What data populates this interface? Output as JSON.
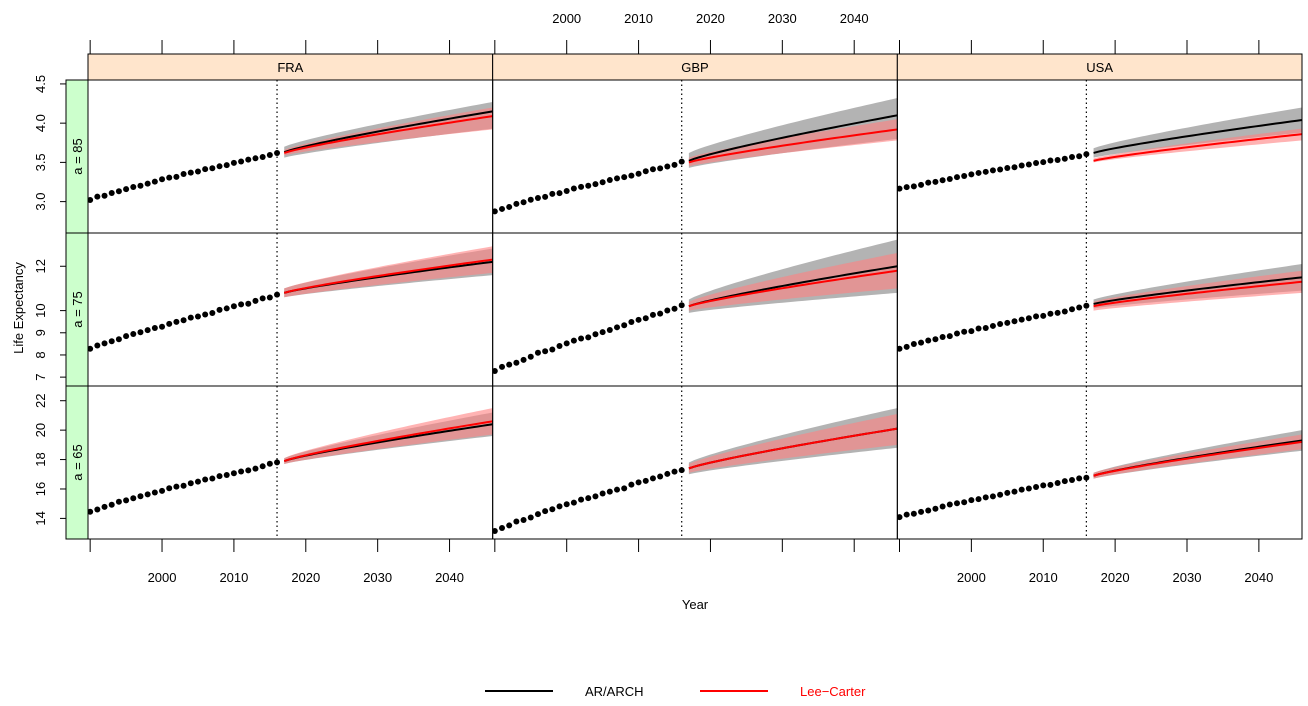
{
  "chart_data": {
    "type": "line",
    "xlabel": "Year",
    "ylabel": "Life Expectancy",
    "observed_years": [
      1990,
      2016
    ],
    "forecast_years": [
      2017,
      2046
    ],
    "forecast_origin": 2016,
    "x_ticks": [
      2000,
      2010,
      2020,
      2030,
      2040
    ],
    "columns": [
      "FRA",
      "GBP",
      "USA"
    ],
    "rows": [
      {
        "label": "a = 85",
        "ylim": [
          2.6,
          4.55
        ],
        "y_ticks": [
          "3.0",
          "3.5",
          "4.0",
          "4.5"
        ]
      },
      {
        "label": "a = 75",
        "ylim": [
          6.6,
          13.5
        ],
        "y_ticks": [
          "7",
          "8",
          "9",
          "10",
          "12"
        ],
        "y_tick_values": [
          7,
          8,
          9,
          10,
          12
        ]
      },
      {
        "label": "a = 65",
        "ylim": [
          12.6,
          23.0
        ],
        "y_ticks": [
          "14",
          "16",
          "18",
          "20",
          "22"
        ],
        "y_tick_values": [
          14,
          16,
          18,
          20,
          22
        ]
      }
    ],
    "panels": [
      {
        "column": "FRA",
        "row": "a = 85",
        "observed_start": 3.03,
        "observed_end": 3.62,
        "ar_arch": {
          "start": 3.63,
          "end": 4.15,
          "lower_start": 3.56,
          "lower_end": 3.93,
          "upper_start": 3.7,
          "upper_end": 4.27
        },
        "lee_carter": {
          "start": 3.62,
          "end": 4.09,
          "lower_start": 3.59,
          "lower_end": 3.92,
          "upper_start": 3.66,
          "upper_end": 4.2
        }
      },
      {
        "column": "GBP",
        "row": "a = 85",
        "observed_start": 2.88,
        "observed_end": 3.5,
        "ar_arch": {
          "start": 3.52,
          "end": 4.1,
          "lower_start": 3.43,
          "lower_end": 3.8,
          "upper_start": 3.62,
          "upper_end": 4.32
        },
        "lee_carter": {
          "start": 3.5,
          "end": 3.92,
          "lower_start": 3.45,
          "lower_end": 3.78,
          "upper_start": 3.56,
          "upper_end": 4.05
        }
      },
      {
        "column": "USA",
        "row": "a = 85",
        "observed_start": 3.16,
        "observed_end": 3.6,
        "ar_arch": {
          "start": 3.62,
          "end": 4.04,
          "lower_start": 3.56,
          "lower_end": 3.88,
          "upper_start": 3.68,
          "upper_end": 4.2
        },
        "lee_carter": {
          "start": 3.52,
          "end": 3.86,
          "lower_start": 3.5,
          "lower_end": 3.78,
          "upper_start": 3.55,
          "upper_end": 3.93
        }
      },
      {
        "column": "FRA",
        "row": "a = 75",
        "observed_start": 8.3,
        "observed_end": 10.7,
        "ar_arch": {
          "start": 10.8,
          "end": 12.2,
          "lower_start": 10.6,
          "lower_end": 11.6,
          "upper_start": 11.0,
          "upper_end": 12.8
        },
        "lee_carter": {
          "start": 10.8,
          "end": 12.3,
          "lower_start": 10.6,
          "lower_end": 11.7,
          "upper_start": 11.0,
          "upper_end": 12.9
        }
      },
      {
        "column": "GBP",
        "row": "a = 75",
        "observed_start": 7.3,
        "observed_end": 10.2,
        "ar_arch": {
          "start": 10.2,
          "end": 12.0,
          "lower_start": 9.9,
          "lower_end": 10.8,
          "upper_start": 10.5,
          "upper_end": 13.2
        },
        "lee_carter": {
          "start": 10.2,
          "end": 11.8,
          "lower_start": 10.0,
          "lower_end": 11.0,
          "upper_start": 10.4,
          "upper_end": 12.6
        }
      },
      {
        "column": "USA",
        "row": "a = 75",
        "observed_start": 8.3,
        "observed_end": 10.2,
        "ar_arch": {
          "start": 10.3,
          "end": 11.5,
          "lower_start": 10.1,
          "lower_end": 10.9,
          "upper_start": 10.5,
          "upper_end": 12.1
        },
        "lee_carter": {
          "start": 10.2,
          "end": 11.3,
          "lower_start": 10.0,
          "lower_end": 10.8,
          "upper_start": 10.4,
          "upper_end": 11.8
        }
      },
      {
        "column": "FRA",
        "row": "a = 65",
        "observed_start": 14.5,
        "observed_end": 17.8,
        "ar_arch": {
          "start": 17.9,
          "end": 20.4,
          "lower_start": 17.7,
          "lower_end": 19.6,
          "upper_start": 18.1,
          "upper_end": 21.2
        },
        "lee_carter": {
          "start": 17.9,
          "end": 20.6,
          "lower_start": 17.7,
          "lower_end": 19.7,
          "upper_start": 18.1,
          "upper_end": 21.5
        }
      },
      {
        "column": "GBP",
        "row": "a = 65",
        "observed_start": 13.2,
        "observed_end": 17.3,
        "ar_arch": {
          "start": 17.4,
          "end": 20.1,
          "lower_start": 17.0,
          "lower_end": 18.8,
          "upper_start": 17.8,
          "upper_end": 21.5
        },
        "lee_carter": {
          "start": 17.4,
          "end": 20.1,
          "lower_start": 17.1,
          "lower_end": 19.0,
          "upper_start": 17.7,
          "upper_end": 21.1
        }
      },
      {
        "column": "USA",
        "row": "a = 65",
        "observed_start": 14.1,
        "observed_end": 16.8,
        "ar_arch": {
          "start": 16.9,
          "end": 19.3,
          "lower_start": 16.7,
          "lower_end": 18.6,
          "upper_start": 17.1,
          "upper_end": 20.0
        },
        "lee_carter": {
          "start": 16.9,
          "end": 19.2,
          "lower_start": 16.7,
          "lower_end": 18.7,
          "upper_start": 17.1,
          "upper_end": 19.7
        }
      }
    ],
    "legend": [
      {
        "name": "AR/ARCH",
        "color": "#000000"
      },
      {
        "name": "Lee−Carter",
        "color": "#ff0000"
      }
    ],
    "colors": {
      "strip_column": "#ffe5cc",
      "strip_row": "#ccffcc",
      "ar_arch_band": "#a6a6a6",
      "lee_carter_band": "#ff8080"
    },
    "grid": false,
    "legend_position": "bottom"
  }
}
